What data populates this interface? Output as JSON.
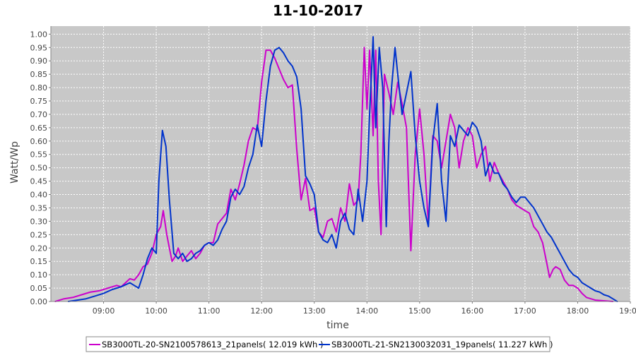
{
  "chart_data": {
    "type": "line",
    "title": "11-10-2017",
    "xlabel": "time",
    "ylabel": "Watt/Wp",
    "xlim": [
      "08:00",
      "19:00"
    ],
    "ylim": [
      0,
      1.03
    ],
    "x_ticks": [
      "09:00",
      "10:00",
      "11:00",
      "12:00",
      "13:00",
      "14:00",
      "15:00",
      "16:00",
      "17:00",
      "18:00",
      "19:00"
    ],
    "y_ticks": [
      "0.00",
      "0.05",
      "0.10",
      "0.15",
      "0.20",
      "0.25",
      "0.30",
      "0.35",
      "0.40",
      "0.45",
      "0.50",
      "0.55",
      "0.60",
      "0.65",
      "0.70",
      "0.75",
      "0.80",
      "0.85",
      "0.90",
      "0.95",
      "1.00"
    ],
    "grid": true,
    "legend_position": "bottom",
    "plot_background": "#c8c8c8",
    "series": [
      {
        "name": "SB3000TL-20-SN2100578613_21panels",
        "legend_label": "SB3000TL-20-SN2100578613_21panels( 12.019 kWh )",
        "color": "#cc00cc",
        "points": [
          [
            "08:05",
            0.0
          ],
          [
            "08:15",
            0.01
          ],
          [
            "08:25",
            0.015
          ],
          [
            "08:35",
            0.025
          ],
          [
            "08:45",
            0.035
          ],
          [
            "08:55",
            0.04
          ],
          [
            "09:05",
            0.05
          ],
          [
            "09:15",
            0.06
          ],
          [
            "09:20",
            0.055
          ],
          [
            "09:25",
            0.07
          ],
          [
            "09:30",
            0.085
          ],
          [
            "09:35",
            0.08
          ],
          [
            "09:40",
            0.1
          ],
          [
            "09:45",
            0.13
          ],
          [
            "09:50",
            0.14
          ],
          [
            "09:55",
            0.18
          ],
          [
            "10:00",
            0.25
          ],
          [
            "10:05",
            0.28
          ],
          [
            "10:08",
            0.34
          ],
          [
            "10:12",
            0.25
          ],
          [
            "10:15",
            0.2
          ],
          [
            "10:18",
            0.15
          ],
          [
            "10:22",
            0.17
          ],
          [
            "10:25",
            0.2
          ],
          [
            "10:30",
            0.15
          ],
          [
            "10:35",
            0.17
          ],
          [
            "10:40",
            0.19
          ],
          [
            "10:45",
            0.16
          ],
          [
            "10:50",
            0.18
          ],
          [
            "10:55",
            0.21
          ],
          [
            "11:00",
            0.22
          ],
          [
            "11:05",
            0.22
          ],
          [
            "11:10",
            0.29
          ],
          [
            "11:15",
            0.31
          ],
          [
            "11:20",
            0.33
          ],
          [
            "11:25",
            0.42
          ],
          [
            "11:30",
            0.38
          ],
          [
            "11:35",
            0.44
          ],
          [
            "11:40",
            0.51
          ],
          [
            "11:45",
            0.6
          ],
          [
            "11:50",
            0.65
          ],
          [
            "11:55",
            0.64
          ],
          [
            "12:00",
            0.82
          ],
          [
            "12:05",
            0.94
          ],
          [
            "12:10",
            0.94
          ],
          [
            "12:15",
            0.91
          ],
          [
            "12:20",
            0.87
          ],
          [
            "12:25",
            0.83
          ],
          [
            "12:30",
            0.8
          ],
          [
            "12:35",
            0.81
          ],
          [
            "12:40",
            0.57
          ],
          [
            "12:45",
            0.38
          ],
          [
            "12:50",
            0.46
          ],
          [
            "12:55",
            0.34
          ],
          [
            "13:00",
            0.35
          ],
          [
            "13:05",
            0.26
          ],
          [
            "13:10",
            0.24
          ],
          [
            "13:15",
            0.3
          ],
          [
            "13:20",
            0.31
          ],
          [
            "13:25",
            0.26
          ],
          [
            "13:30",
            0.35
          ],
          [
            "13:35",
            0.3
          ],
          [
            "13:40",
            0.44
          ],
          [
            "13:45",
            0.36
          ],
          [
            "13:50",
            0.38
          ],
          [
            "13:53",
            0.55
          ],
          [
            "13:57",
            0.95
          ],
          [
            "14:00",
            0.72
          ],
          [
            "14:03",
            0.94
          ],
          [
            "14:07",
            0.62
          ],
          [
            "14:10",
            0.94
          ],
          [
            "14:13",
            0.45
          ],
          [
            "14:16",
            0.25
          ],
          [
            "14:20",
            0.85
          ],
          [
            "14:25",
            0.78
          ],
          [
            "14:30",
            0.7
          ],
          [
            "14:35",
            0.82
          ],
          [
            "14:40",
            0.74
          ],
          [
            "14:45",
            0.65
          ],
          [
            "14:50",
            0.19
          ],
          [
            "14:55",
            0.55
          ],
          [
            "15:00",
            0.72
          ],
          [
            "15:05",
            0.55
          ],
          [
            "15:10",
            0.29
          ],
          [
            "15:15",
            0.62
          ],
          [
            "15:20",
            0.6
          ],
          [
            "15:25",
            0.5
          ],
          [
            "15:30",
            0.6
          ],
          [
            "15:35",
            0.7
          ],
          [
            "15:40",
            0.65
          ],
          [
            "15:45",
            0.5
          ],
          [
            "15:50",
            0.6
          ],
          [
            "15:55",
            0.65
          ],
          [
            "16:00",
            0.62
          ],
          [
            "16:05",
            0.5
          ],
          [
            "16:10",
            0.55
          ],
          [
            "16:15",
            0.58
          ],
          [
            "16:20",
            0.45
          ],
          [
            "16:25",
            0.52
          ],
          [
            "16:30",
            0.48
          ],
          [
            "16:35",
            0.45
          ],
          [
            "16:40",
            0.42
          ],
          [
            "16:45",
            0.38
          ],
          [
            "16:50",
            0.36
          ],
          [
            "16:55",
            0.35
          ],
          [
            "17:00",
            0.34
          ],
          [
            "17:05",
            0.33
          ],
          [
            "17:10",
            0.28
          ],
          [
            "17:15",
            0.26
          ],
          [
            "17:20",
            0.22
          ],
          [
            "17:25",
            0.14
          ],
          [
            "17:28",
            0.09
          ],
          [
            "17:32",
            0.12
          ],
          [
            "17:35",
            0.13
          ],
          [
            "17:40",
            0.12
          ],
          [
            "17:45",
            0.08
          ],
          [
            "17:50",
            0.06
          ],
          [
            "17:55",
            0.06
          ],
          [
            "18:00",
            0.05
          ],
          [
            "18:05",
            0.03
          ],
          [
            "18:10",
            0.015
          ],
          [
            "18:20",
            0.005
          ],
          [
            "18:40",
            0.0
          ]
        ]
      },
      {
        "name": "SB3000TL-21-SN2130032031_19panels",
        "legend_label": "SB3000TL-21-SN2130032031_19panels( 11.227 kWh )",
        "color": "#0033cc",
        "points": [
          [
            "08:20",
            0.0
          ],
          [
            "08:30",
            0.005
          ],
          [
            "08:40",
            0.01
          ],
          [
            "08:50",
            0.02
          ],
          [
            "09:00",
            0.03
          ],
          [
            "09:10",
            0.045
          ],
          [
            "09:20",
            0.055
          ],
          [
            "09:30",
            0.07
          ],
          [
            "09:35",
            0.06
          ],
          [
            "09:40",
            0.05
          ],
          [
            "09:45",
            0.1
          ],
          [
            "09:50",
            0.16
          ],
          [
            "09:55",
            0.2
          ],
          [
            "10:00",
            0.18
          ],
          [
            "10:03",
            0.45
          ],
          [
            "10:07",
            0.64
          ],
          [
            "10:11",
            0.58
          ],
          [
            "10:15",
            0.38
          ],
          [
            "10:20",
            0.18
          ],
          [
            "10:25",
            0.16
          ],
          [
            "10:30",
            0.18
          ],
          [
            "10:35",
            0.15
          ],
          [
            "10:40",
            0.16
          ],
          [
            "10:45",
            0.18
          ],
          [
            "10:50",
            0.19
          ],
          [
            "10:55",
            0.21
          ],
          [
            "11:00",
            0.22
          ],
          [
            "11:05",
            0.21
          ],
          [
            "11:10",
            0.23
          ],
          [
            "11:15",
            0.27
          ],
          [
            "11:20",
            0.3
          ],
          [
            "11:25",
            0.39
          ],
          [
            "11:30",
            0.42
          ],
          [
            "11:35",
            0.4
          ],
          [
            "11:40",
            0.43
          ],
          [
            "11:45",
            0.5
          ],
          [
            "11:50",
            0.55
          ],
          [
            "11:55",
            0.66
          ],
          [
            "12:00",
            0.58
          ],
          [
            "12:05",
            0.75
          ],
          [
            "12:10",
            0.88
          ],
          [
            "12:15",
            0.94
          ],
          [
            "12:20",
            0.95
          ],
          [
            "12:25",
            0.93
          ],
          [
            "12:30",
            0.9
          ],
          [
            "12:35",
            0.88
          ],
          [
            "12:40",
            0.84
          ],
          [
            "12:45",
            0.72
          ],
          [
            "12:50",
            0.47
          ],
          [
            "12:55",
            0.44
          ],
          [
            "13:00",
            0.4
          ],
          [
            "13:05",
            0.26
          ],
          [
            "13:10",
            0.23
          ],
          [
            "13:15",
            0.22
          ],
          [
            "13:20",
            0.25
          ],
          [
            "13:25",
            0.2
          ],
          [
            "13:30",
            0.3
          ],
          [
            "13:35",
            0.33
          ],
          [
            "13:40",
            0.27
          ],
          [
            "13:45",
            0.25
          ],
          [
            "13:50",
            0.42
          ],
          [
            "13:55",
            0.3
          ],
          [
            "14:00",
            0.45
          ],
          [
            "14:03",
            0.7
          ],
          [
            "14:07",
            0.99
          ],
          [
            "14:10",
            0.65
          ],
          [
            "14:14",
            0.95
          ],
          [
            "14:18",
            0.8
          ],
          [
            "14:22",
            0.28
          ],
          [
            "14:25",
            0.6
          ],
          [
            "14:28",
            0.8
          ],
          [
            "14:32",
            0.95
          ],
          [
            "14:36",
            0.82
          ],
          [
            "14:40",
            0.7
          ],
          [
            "14:45",
            0.78
          ],
          [
            "14:50",
            0.86
          ],
          [
            "14:55",
            0.62
          ],
          [
            "15:00",
            0.45
          ],
          [
            "15:05",
            0.35
          ],
          [
            "15:10",
            0.28
          ],
          [
            "15:15",
            0.6
          ],
          [
            "15:20",
            0.74
          ],
          [
            "15:25",
            0.45
          ],
          [
            "15:30",
            0.3
          ],
          [
            "15:35",
            0.62
          ],
          [
            "15:40",
            0.58
          ],
          [
            "15:45",
            0.66
          ],
          [
            "15:50",
            0.64
          ],
          [
            "15:55",
            0.62
          ],
          [
            "16:00",
            0.67
          ],
          [
            "16:05",
            0.65
          ],
          [
            "16:10",
            0.6
          ],
          [
            "16:15",
            0.47
          ],
          [
            "16:20",
            0.52
          ],
          [
            "16:25",
            0.48
          ],
          [
            "16:30",
            0.48
          ],
          [
            "16:35",
            0.44
          ],
          [
            "16:40",
            0.42
          ],
          [
            "16:45",
            0.39
          ],
          [
            "16:50",
            0.37
          ],
          [
            "16:55",
            0.39
          ],
          [
            "17:00",
            0.39
          ],
          [
            "17:05",
            0.37
          ],
          [
            "17:10",
            0.35
          ],
          [
            "17:15",
            0.32
          ],
          [
            "17:20",
            0.29
          ],
          [
            "17:25",
            0.26
          ],
          [
            "17:30",
            0.24
          ],
          [
            "17:35",
            0.21
          ],
          [
            "17:40",
            0.18
          ],
          [
            "17:45",
            0.15
          ],
          [
            "17:50",
            0.12
          ],
          [
            "17:55",
            0.1
          ],
          [
            "18:00",
            0.09
          ],
          [
            "18:05",
            0.07
          ],
          [
            "18:10",
            0.06
          ],
          [
            "18:15",
            0.05
          ],
          [
            "18:20",
            0.04
          ],
          [
            "18:25",
            0.035
          ],
          [
            "18:30",
            0.025
          ],
          [
            "18:35",
            0.02
          ],
          [
            "18:40",
            0.01
          ],
          [
            "18:45",
            0.0
          ]
        ]
      }
    ]
  }
}
